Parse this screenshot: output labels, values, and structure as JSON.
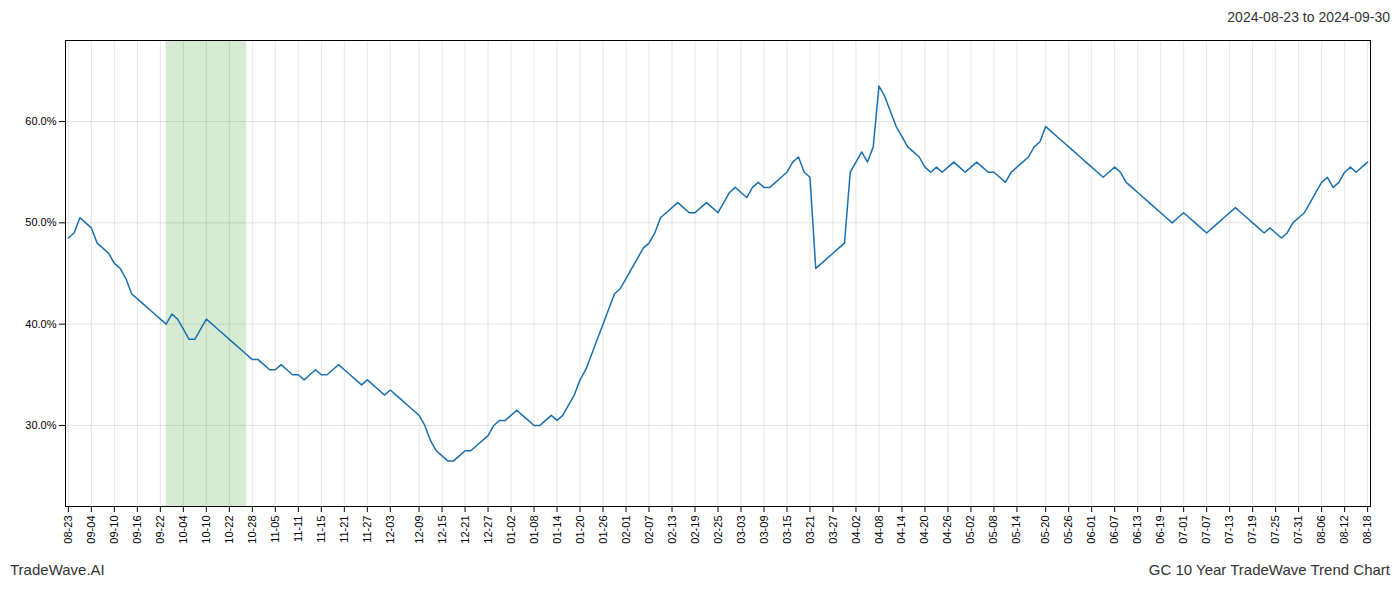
{
  "chart_data": {
    "type": "line",
    "title": "2024-08-23 to 2024-09-30",
    "annotations": [
      "TradeWave.AI",
      "GC 10 Year TradeWave Trend Chart"
    ],
    "color": "#1a6faf",
    "grid": true,
    "shaded_region": {
      "start": 17,
      "end": 31,
      "color": "#d6ecd2"
    },
    "ylim": [
      22.0,
      68.0
    ],
    "yticks": [
      {
        "value": 30.0,
        "label": "30.0%"
      },
      {
        "value": 40.0,
        "label": "40.0%"
      },
      {
        "value": 50.0,
        "label": "50.0%"
      },
      {
        "value": 60.0,
        "label": "60.0%"
      }
    ],
    "categories": [
      "08-23",
      null,
      null,
      null,
      "09-04",
      null,
      null,
      null,
      "09-10",
      null,
      null,
      null,
      "09-16",
      null,
      null,
      null,
      "09-22",
      null,
      null,
      null,
      "10-04",
      null,
      null,
      null,
      "10-10",
      null,
      null,
      null,
      "10-22",
      null,
      null,
      null,
      "10-28",
      null,
      null,
      null,
      "11-05",
      null,
      null,
      null,
      "11-11",
      null,
      null,
      null,
      "11-15",
      null,
      null,
      null,
      "11-21",
      null,
      null,
      null,
      "11-27",
      null,
      null,
      null,
      "12-03",
      null,
      null,
      null,
      null,
      "12-09",
      null,
      null,
      null,
      "12-15",
      null,
      null,
      null,
      "12-21",
      null,
      null,
      null,
      "12-27",
      null,
      null,
      null,
      "01-02",
      null,
      null,
      null,
      "01-08",
      null,
      null,
      null,
      "01-14",
      null,
      null,
      null,
      "01-20",
      null,
      null,
      null,
      "01-26",
      null,
      null,
      null,
      "02-01",
      null,
      null,
      null,
      "02-07",
      null,
      null,
      null,
      "02-13",
      null,
      null,
      null,
      "02-19",
      null,
      null,
      null,
      "02-25",
      null,
      null,
      null,
      "03-03",
      null,
      null,
      null,
      "03-09",
      null,
      null,
      null,
      "03-15",
      null,
      null,
      null,
      "03-21",
      null,
      null,
      null,
      "03-27",
      null,
      null,
      null,
      "04-02",
      null,
      null,
      null,
      "04-08",
      null,
      null,
      null,
      "04-14",
      null,
      null,
      null,
      "04-20",
      null,
      null,
      null,
      "04-26",
      null,
      null,
      null,
      "05-02",
      null,
      null,
      null,
      "05-08",
      null,
      null,
      null,
      "05-14",
      null,
      null,
      null,
      null,
      "05-20",
      null,
      null,
      null,
      "05-26",
      null,
      null,
      null,
      "06-01",
      null,
      null,
      null,
      "06-07",
      null,
      null,
      null,
      "06-13",
      null,
      null,
      null,
      "06-19",
      null,
      null,
      null,
      "07-01",
      null,
      null,
      null,
      "07-07",
      null,
      null,
      null,
      "07-13",
      null,
      null,
      null,
      "07-19",
      null,
      null,
      null,
      "07-25",
      null,
      null,
      null,
      "07-31",
      null,
      null,
      null,
      "08-06",
      null,
      null,
      null,
      "08-12",
      null,
      null,
      null,
      "08-18"
    ],
    "values": [
      48.5,
      49.0,
      50.5,
      50.0,
      49.5,
      48.0,
      47.5,
      47.0,
      46.0,
      45.5,
      44.5,
      43.0,
      42.5,
      42.0,
      41.5,
      41.0,
      40.5,
      40.0,
      41.0,
      40.5,
      39.5,
      38.5,
      38.5,
      39.5,
      40.5,
      40.0,
      39.5,
      39.0,
      38.5,
      38.0,
      37.5,
      37.0,
      36.5,
      36.5,
      36.0,
      35.5,
      35.5,
      36.0,
      35.5,
      35.0,
      35.0,
      34.5,
      35.0,
      35.5,
      35.0,
      35.0,
      35.5,
      36.0,
      35.5,
      35.0,
      34.5,
      34.0,
      34.5,
      34.0,
      33.5,
      33.0,
      33.5,
      33.0,
      32.5,
      32.0,
      31.5,
      31.0,
      30.0,
      28.5,
      27.5,
      27.0,
      26.5,
      26.5,
      27.0,
      27.5,
      27.5,
      28.0,
      28.5,
      29.0,
      30.0,
      30.5,
      30.5,
      31.0,
      31.5,
      31.0,
      30.5,
      30.0,
      30.0,
      30.5,
      31.0,
      30.5,
      31.0,
      32.0,
      33.0,
      34.5,
      35.5,
      37.0,
      38.5,
      40.0,
      41.5,
      43.0,
      43.5,
      44.5,
      45.5,
      46.5,
      47.5,
      48.0,
      49.0,
      50.5,
      51.0,
      51.5,
      52.0,
      51.5,
      51.0,
      51.0,
      51.5,
      52.0,
      51.5,
      51.0,
      52.0,
      53.0,
      53.5,
      53.0,
      52.5,
      53.5,
      54.0,
      53.5,
      53.5,
      54.0,
      54.5,
      55.0,
      56.0,
      56.5,
      55.0,
      54.5,
      45.5,
      46.0,
      46.5,
      47.0,
      47.5,
      48.0,
      55.0,
      56.0,
      57.0,
      56.0,
      57.5,
      63.5,
      62.5,
      61.0,
      59.5,
      58.5,
      57.5,
      57.0,
      56.5,
      55.5,
      55.0,
      55.5,
      55.0,
      55.5,
      56.0,
      55.5,
      55.0,
      55.5,
      56.0,
      55.5,
      55.0,
      55.0,
      54.5,
      54.0,
      55.0,
      55.5,
      56.0,
      56.5,
      57.5,
      58.0,
      59.5,
      59.0,
      58.5,
      58.0,
      57.5,
      57.0,
      56.5,
      56.0,
      55.5,
      55.0,
      54.5,
      55.0,
      55.5,
      55.0,
      54.0,
      53.5,
      53.0,
      52.5,
      52.0,
      51.5,
      51.0,
      50.5,
      50.0,
      50.5,
      51.0,
      50.5,
      50.0,
      49.5,
      49.0,
      49.5,
      50.0,
      50.5,
      51.0,
      51.5,
      51.0,
      50.5,
      50.0,
      49.5,
      49.0,
      49.5,
      49.0,
      48.5,
      49.0,
      50.0,
      50.5,
      51.0,
      52.0,
      53.0,
      54.0,
      54.5,
      53.5,
      54.0,
      55.0,
      55.5,
      55.0,
      55.5,
      56.0
    ]
  }
}
